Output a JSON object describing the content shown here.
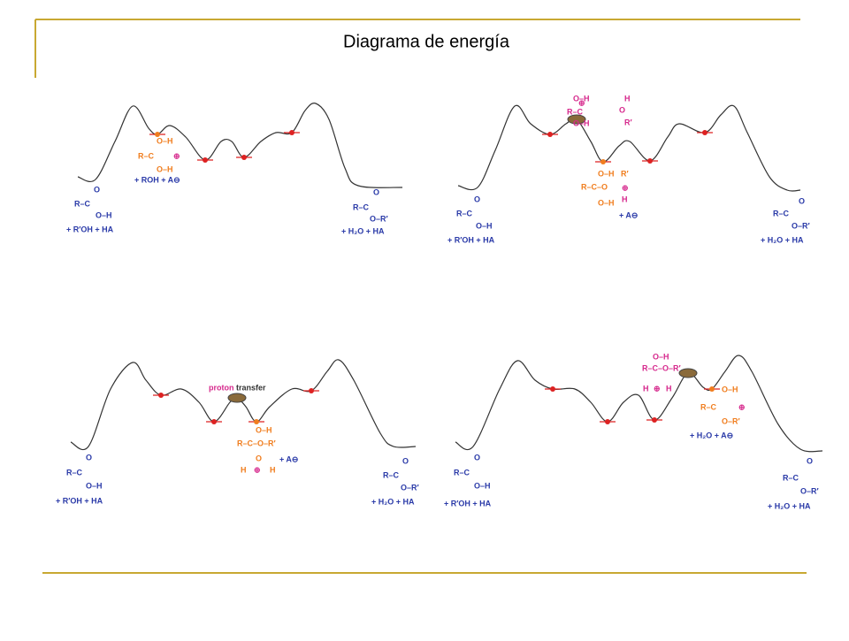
{
  "header": {
    "title": "Diagrama de energía"
  },
  "panels": [
    {
      "reactant": [
        "O",
        "R–C",
        "O–H",
        "+ R′OH + HA"
      ],
      "intermediate": [
        "O–H",
        "R–C",
        "⊕",
        "O–H",
        "+ ROH + A⊖"
      ],
      "product": [
        "O",
        "R–C",
        "O–R′",
        "+ H₂O + HA"
      ]
    },
    {
      "reactant": [
        "O",
        "R–C",
        "O–H",
        "+ R′OH + HA"
      ],
      "attack": [
        "O–H",
        "R–C",
        "⊕",
        "O–H",
        "H",
        "O",
        "R′"
      ],
      "intermediate": [
        "O–H",
        "R′",
        "R–C–O",
        "⊕",
        "O–H",
        "H",
        "+ A⊖"
      ],
      "product": [
        "O",
        "R–C",
        "O–R′",
        "+ H₂O + HA"
      ]
    },
    {
      "reactant": [
        "O",
        "R–C",
        "O–H",
        "+ R′OH + HA"
      ],
      "note": [
        "proton",
        "transfer"
      ],
      "intermediate": [
        "O–H",
        "R–C–O–R′",
        "O",
        "H",
        "⊕",
        "H",
        "+ A⊖"
      ],
      "product": [
        "O",
        "R–C",
        "O–R′",
        "+ H₂O + HA"
      ]
    },
    {
      "reactant": [
        "O",
        "R–C",
        "O–H",
        "+ R′OH + HA"
      ],
      "attack": [
        "O–H",
        "R–C–O–R′",
        "H",
        "⊕",
        "H"
      ],
      "intermediate": [
        "O–H",
        "R–C",
        "⊕",
        "O–R′",
        "+ H₂O + A⊖"
      ],
      "product": [
        "O",
        "R–C",
        "O–R′",
        "+ H₂O + HA"
      ]
    }
  ]
}
